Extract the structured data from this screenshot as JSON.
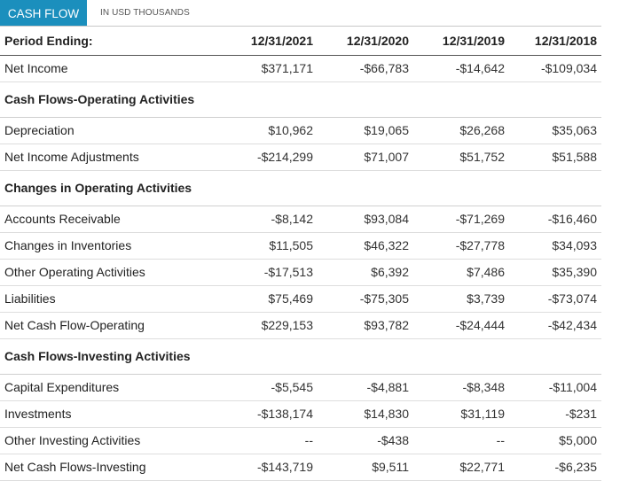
{
  "tabs": {
    "active": "CASH FLOW",
    "note": "IN USD THOUSANDS"
  },
  "table": {
    "header": [
      "Period Ending:",
      "12/31/2021",
      "12/31/2020",
      "12/31/2019",
      "12/31/2018"
    ],
    "rows": [
      {
        "type": "row",
        "label": "Net Income",
        "values": [
          "$371,171",
          "-$66,783",
          "-$14,642",
          "-$109,034"
        ]
      },
      {
        "type": "section",
        "label": "Cash Flows-Operating Activities"
      },
      {
        "type": "row",
        "label": "Depreciation",
        "values": [
          "$10,962",
          "$19,065",
          "$26,268",
          "$35,063"
        ]
      },
      {
        "type": "row",
        "label": "Net Income Adjustments",
        "values": [
          "-$214,299",
          "$71,007",
          "$51,752",
          "$51,588"
        ]
      },
      {
        "type": "section",
        "label": "Changes in Operating Activities"
      },
      {
        "type": "row",
        "label": "Accounts Receivable",
        "values": [
          "-$8,142",
          "$93,084",
          "-$71,269",
          "-$16,460"
        ]
      },
      {
        "type": "row",
        "label": "Changes in Inventories",
        "values": [
          "$11,505",
          "$46,322",
          "-$27,778",
          "$34,093"
        ]
      },
      {
        "type": "row",
        "label": "Other Operating Activities",
        "values": [
          "-$17,513",
          "$6,392",
          "$7,486",
          "$35,390"
        ]
      },
      {
        "type": "row",
        "label": "Liabilities",
        "values": [
          "$75,469",
          "-$75,305",
          "$3,739",
          "-$73,074"
        ]
      },
      {
        "type": "row",
        "label": "Net Cash Flow-Operating",
        "values": [
          "$229,153",
          "$93,782",
          "-$24,444",
          "-$42,434"
        ]
      },
      {
        "type": "section",
        "label": "Cash Flows-Investing Activities"
      },
      {
        "type": "row",
        "label": "Capital Expenditures",
        "values": [
          "-$5,545",
          "-$4,881",
          "-$8,348",
          "-$11,004"
        ]
      },
      {
        "type": "row",
        "label": "Investments",
        "values": [
          "-$138,174",
          "$14,830",
          "$31,119",
          "-$231"
        ]
      },
      {
        "type": "row",
        "label": "Other Investing Activities",
        "values": [
          "--",
          "-$438",
          "--",
          "$5,000"
        ]
      },
      {
        "type": "row",
        "label": "Net Cash Flows-Investing",
        "values": [
          "-$143,719",
          "$9,511",
          "$22,771",
          "-$6,235"
        ]
      }
    ]
  }
}
